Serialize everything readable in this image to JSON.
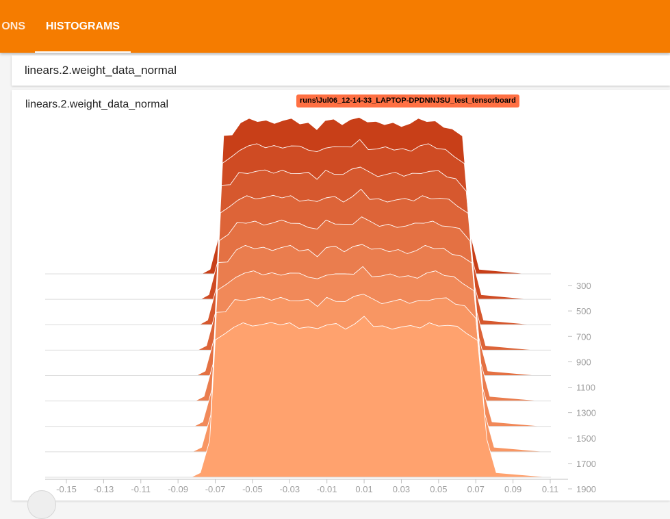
{
  "header": {
    "tabs": [
      {
        "label": "ONS",
        "active": false
      },
      {
        "label": "HISTOGRAMS",
        "active": true
      }
    ],
    "accent_color": "#f57c00"
  },
  "search": {
    "value": "linears.2.weight_data_normal"
  },
  "card": {
    "title": "linears.2.weight_data_normal",
    "run_tag": "runs\\Jul06_12-14-33_LAPTOP-DPDNNJSU_test_tensorboard"
  },
  "chart_data": {
    "type": "histogram-offset",
    "x_ticks": [
      "-0.15",
      "-0.13",
      "-0.11",
      "-0.09",
      "-0.07",
      "-0.05",
      "-0.03",
      "-0.01",
      "0.01",
      "0.03",
      "0.05",
      "0.07",
      "0.09",
      "0.11"
    ],
    "x_range": [
      -0.15,
      0.11
    ],
    "step_ticks": [
      "300",
      "500",
      "700",
      "900",
      "1100",
      "1300",
      "1500",
      "1700",
      "1900"
    ],
    "steps": [
      300,
      500,
      700,
      900,
      1100,
      1300,
      1500,
      1700,
      1900
    ],
    "colors": {
      "front": "#ffa26e",
      "back": "#c83f18"
    },
    "bin_x": [
      -0.15,
      -0.083,
      -0.078,
      -0.073,
      -0.07,
      -0.065,
      -0.06,
      -0.055,
      -0.05,
      -0.045,
      -0.04,
      -0.035,
      -0.03,
      -0.025,
      -0.02,
      -0.015,
      -0.01,
      -0.005,
      0.0,
      0.005,
      0.01,
      0.015,
      0.02,
      0.025,
      0.03,
      0.035,
      0.04,
      0.045,
      0.05,
      0.055,
      0.06,
      0.065,
      0.071,
      0.076,
      0.081,
      0.11
    ],
    "counts": [
      0,
      0,
      6,
      48,
      179,
      184,
      197,
      200,
      200,
      199,
      199,
      200,
      200,
      197,
      196,
      191,
      200,
      199,
      196,
      200,
      207,
      198,
      196,
      196,
      196,
      195,
      196,
      200,
      200,
      198,
      194,
      189,
      177,
      49,
      6,
      0
    ]
  }
}
